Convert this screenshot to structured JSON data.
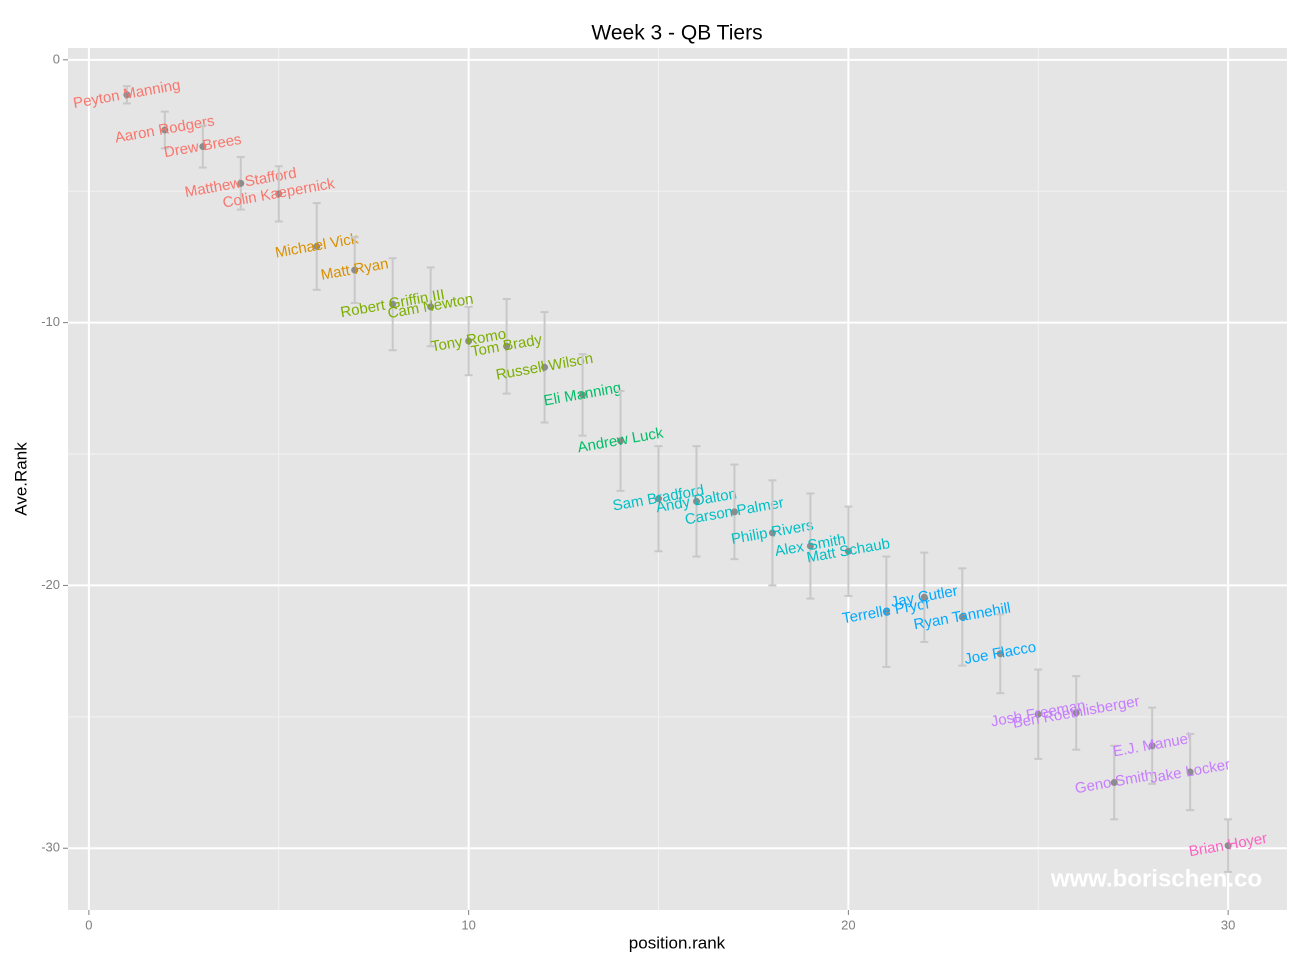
{
  "chart_data": {
    "type": "scatter",
    "title": "Week 3 - QB Tiers",
    "x_label": "position.rank",
    "y_label": "Ave.Rank",
    "watermark": "www.borischen.co",
    "xlim": [
      -0.55,
      31.55
    ],
    "ylim": [
      -32.35,
      0.45
    ],
    "xticks": [
      0,
      10,
      20,
      30
    ],
    "yticks": [
      0,
      -10,
      -20,
      -30
    ],
    "xminor": [
      5,
      15,
      25
    ],
    "yminor": [
      -5,
      -15,
      -25
    ],
    "grid": true,
    "series": [
      {
        "color": "#F8766D",
        "x": [
          1,
          2,
          3,
          4,
          5
        ],
        "values": [
          -1.33,
          -2.67,
          -3.3,
          -4.7,
          -5.1
        ],
        "errors": [
          0.33,
          0.7,
          0.8,
          1.0,
          1.05
        ],
        "labels": [
          "Peyton Manning",
          "Aaron Rodgers",
          "Drew Brees",
          "Matthew Stafford",
          "Colin Kaepernick"
        ]
      },
      {
        "color": "#D89000",
        "x": [
          6,
          7
        ],
        "values": [
          -7.1,
          -8.0
        ],
        "errors": [
          1.65,
          1.25
        ],
        "labels": [
          "Michael Vick",
          "Matt Ryan"
        ]
      },
      {
        "color": "#7CAE00",
        "x": [
          8,
          9,
          10,
          11,
          12
        ],
        "values": [
          -9.3,
          -9.4,
          -10.7,
          -10.9,
          -11.7
        ],
        "errors": [
          1.75,
          1.5,
          1.3,
          1.8,
          2.1
        ],
        "labels": [
          "Robert Griffin III",
          "Cam Newton",
          "Tony Romo",
          "Tom Brady",
          "Russell Wilson"
        ]
      },
      {
        "color": "#00BE67",
        "x": [
          13,
          14
        ],
        "values": [
          -12.75,
          -14.5
        ],
        "errors": [
          1.55,
          1.9
        ],
        "labels": [
          "Eli Manning",
          "Andrew Luck"
        ]
      },
      {
        "color": "#00BFC4",
        "x": [
          15,
          16,
          17,
          18,
          19,
          20
        ],
        "values": [
          -16.7,
          -16.8,
          -17.2,
          -18.0,
          -18.5,
          -18.7
        ],
        "errors": [
          2.0,
          2.1,
          1.8,
          2.0,
          2.0,
          1.7
        ],
        "labels": [
          "Sam Bradford",
          "Andy Dalton",
          "Carson Palmer",
          "Philip Rivers",
          "Alex Smith",
          "Matt Schaub"
        ]
      },
      {
        "color": "#00A9FF",
        "x": [
          21,
          22,
          23,
          24
        ],
        "values": [
          -21.0,
          -20.45,
          -21.2,
          -22.6
        ],
        "errors": [
          2.1,
          1.7,
          1.85,
          1.5
        ],
        "labels": [
          "Terrelle Pryor",
          "Jay Cutler",
          "Ryan Tannehill",
          "Joe Flacco"
        ]
      },
      {
        "color": "#C77CFF",
        "x": [
          25,
          26,
          27,
          28,
          29
        ],
        "values": [
          -24.9,
          -24.85,
          -27.5,
          -26.1,
          -27.1
        ],
        "errors": [
          1.7,
          1.4,
          1.4,
          1.45,
          1.45
        ],
        "labels": [
          "Josh Freeman",
          "Ben Roethlisberger",
          "Geno Smith",
          "E.J. Manuel",
          "Jake Locker"
        ]
      },
      {
        "color": "#FF61C3",
        "x": [
          30
        ],
        "values": [
          -29.9
        ],
        "errors": [
          1.0
        ],
        "labels": [
          "Brian Hoyer"
        ]
      }
    ]
  }
}
